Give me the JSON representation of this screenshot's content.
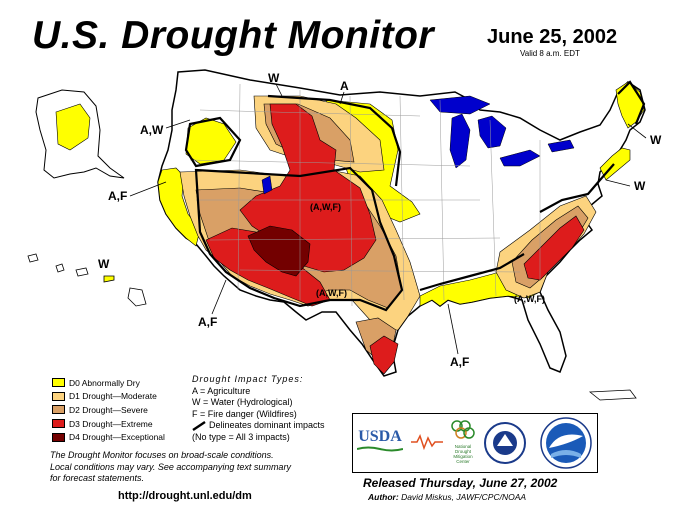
{
  "title": "U.S. Drought Monitor",
  "date": "June 25, 2002",
  "valid": "Valid 8 a.m. EDT",
  "legend": [
    {
      "code": "D0",
      "label": "D0 Abnormally Dry",
      "color": "#ffff00"
    },
    {
      "code": "D1",
      "label": "D1 Drought—Moderate",
      "color": "#fcd37f"
    },
    {
      "code": "D2",
      "label": "D2 Drought—Severe",
      "color": "#d9a066"
    },
    {
      "code": "D3",
      "label": "D3 Drought—Extreme",
      "color": "#dd1c1c"
    },
    {
      "code": "D4",
      "label": "D4 Drought—Exceptional",
      "color": "#730000"
    }
  ],
  "impact": {
    "heading": "Drought Impact Types:",
    "a": "A = Agriculture",
    "w": "W = Water (Hydrological)",
    "f": "F = Fire danger (Wildfires)",
    "delineates": "Delineates dominant impacts",
    "notype": "(No type = All 3 impacts)"
  },
  "note": {
    "line1": "The Drought Monitor focuses on broad-scale conditions.",
    "line2": "Local conditions may vary. See accompanying text summary",
    "line3": "for forecast statements."
  },
  "url": "http://drought.unl.edu/dm",
  "released": "Released Thursday, June 27, 2002",
  "author_label": "Author:",
  "author": "David Miskus, JAWF/CPC/NOAA",
  "logos": {
    "usda": "USDA",
    "ndmc": "National Drought Mitigation Center"
  },
  "map_labels": {
    "w_north": "W",
    "a_north": "A",
    "aw_northwest": "A,W",
    "af_west": "A,F",
    "w_hawaii": "W",
    "af_southwest": "A,F",
    "awf_center": "(A,W,F)",
    "awf_south": "(A,W,F)",
    "awf_southeast": "(A,W,F)",
    "af_gulf": "A,F",
    "w_maine": "W",
    "w_midatlantic": "W"
  },
  "colors": {
    "d0": "#ffff00",
    "d1": "#fcd37f",
    "d2": "#d9a066",
    "d3": "#dd1c1c",
    "d4": "#730000",
    "lakes": "#0000cc",
    "state_lines": "#9a9a9a",
    "rivers": "#3b6fd8"
  }
}
